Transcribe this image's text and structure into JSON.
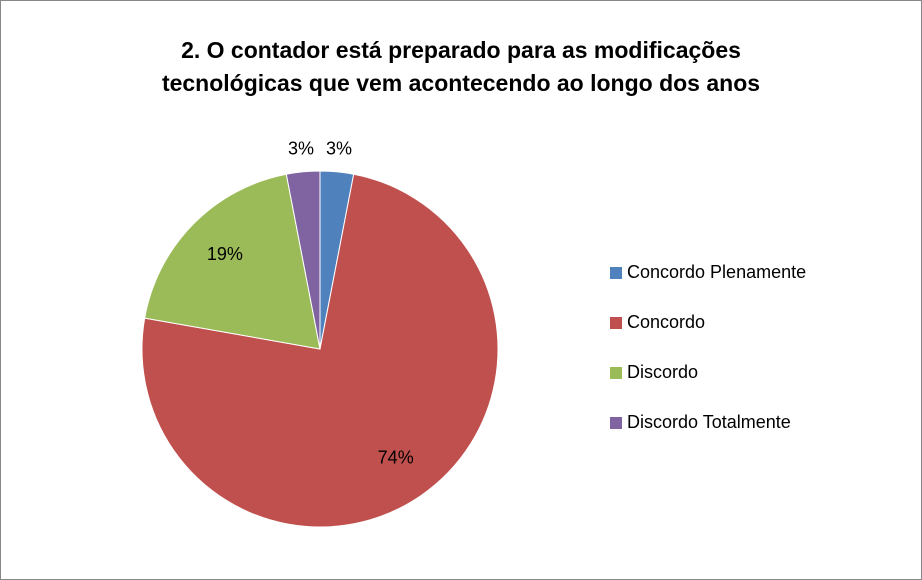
{
  "chart_data": {
    "type": "pie",
    "title": [
      "2. O contador está preparado para as modificações",
      "tecnológicas que vem acontecendo ao longo dos anos"
    ],
    "categories": [
      "Concordo Plenamente",
      "Concordo",
      "Discordo",
      "Discordo Totalmente"
    ],
    "values": [
      3,
      74,
      19,
      3
    ],
    "value_labels": [
      "3%",
      "74%",
      "19%",
      "3%"
    ],
    "colors": [
      "#4f81bd",
      "#c0504d",
      "#9bbb59",
      "#8064a2"
    ],
    "legend": "right"
  }
}
